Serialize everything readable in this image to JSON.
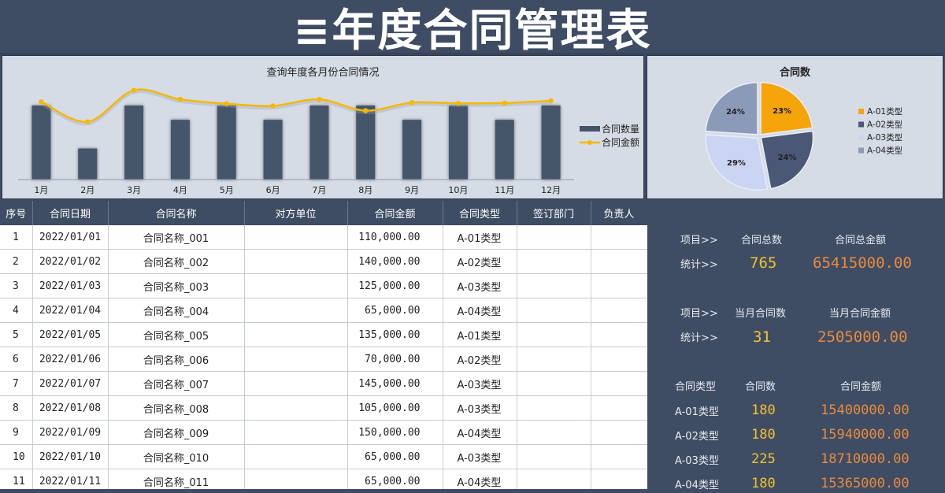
{
  "title": "≡年度合同管理表",
  "colors": {
    "bar": "#44546a",
    "line": "#f5b800",
    "pie": [
      "#f5a40a",
      "#4a5775",
      "#c9d5f2",
      "#8a9ab8"
    ]
  },
  "line_chart": {
    "title": "查询年度各月份合同情况",
    "legend": [
      "合同数量",
      "合同金额"
    ]
  },
  "pie_chart": {
    "title": "合同数",
    "legend": [
      "A-01类型",
      "A-02类型",
      "A-03类型",
      "A-04类型"
    ],
    "labels": [
      "23%",
      "24%",
      "29%",
      "24%"
    ]
  },
  "chart_data": [
    {
      "type": "bar",
      "title": "查询年度各月份合同情况",
      "categories": [
        "1月",
        "2月",
        "3月",
        "4月",
        "5月",
        "6月",
        "7月",
        "8月",
        "9月",
        "10月",
        "11月",
        "12月"
      ],
      "series": [
        {
          "name": "合同数量",
          "type": "bar",
          "values": [
            31,
            13,
            31,
            25,
            31,
            25,
            31,
            31,
            25,
            31,
            25,
            31
          ]
        },
        {
          "name": "合同金额",
          "type": "line",
          "values": [
            2505000,
            1950000,
            2820000,
            2570000,
            2450000,
            2390000,
            2570000,
            2260000,
            2480000,
            2460000,
            2470000,
            2530000
          ]
        }
      ]
    },
    {
      "type": "pie",
      "title": "合同数",
      "categories": [
        "A-01类型",
        "A-02类型",
        "A-03类型",
        "A-04类型"
      ],
      "values": [
        23,
        24,
        29,
        24
      ]
    }
  ],
  "table": {
    "headers": [
      "序号",
      "合同日期",
      "合同名称",
      "对方单位",
      "合同金额",
      "合同类型",
      "签订部门",
      "负责人"
    ],
    "rows": [
      [
        "1",
        "2022/01/01",
        "合同名称_001",
        "",
        "110,000.00",
        "A-01类型",
        "",
        ""
      ],
      [
        "2",
        "2022/01/02",
        "合同名称_002",
        "",
        "140,000.00",
        "A-02类型",
        "",
        ""
      ],
      [
        "3",
        "2022/01/03",
        "合同名称_003",
        "",
        "125,000.00",
        "A-03类型",
        "",
        ""
      ],
      [
        "4",
        "2022/01/04",
        "合同名称_004",
        "",
        "65,000.00",
        "A-04类型",
        "",
        ""
      ],
      [
        "5",
        "2022/01/05",
        "合同名称_005",
        "",
        "135,000.00",
        "A-01类型",
        "",
        ""
      ],
      [
        "6",
        "2022/01/06",
        "合同名称_006",
        "",
        "70,000.00",
        "A-02类型",
        "",
        ""
      ],
      [
        "7",
        "2022/01/07",
        "合同名称_007",
        "",
        "145,000.00",
        "A-03类型",
        "",
        ""
      ],
      [
        "8",
        "2022/01/08",
        "合同名称_008",
        "",
        "105,000.00",
        "A-03类型",
        "",
        ""
      ],
      [
        "9",
        "2022/01/09",
        "合同名称_009",
        "",
        "150,000.00",
        "A-04类型",
        "",
        ""
      ],
      [
        "10",
        "2022/01/10",
        "合同名称_010",
        "",
        "65,000.00",
        "A-03类型",
        "",
        ""
      ],
      [
        "11",
        "2022/01/11",
        "合同名称_011",
        "",
        "65,000.00",
        "A-04类型",
        "",
        ""
      ]
    ]
  },
  "stats": {
    "total": {
      "item_label": "项目>>",
      "count_label": "合同总数",
      "amount_label": "合同总金额",
      "stat_label": "统计>>",
      "count": "765",
      "amount": "65415000.00"
    },
    "month": {
      "item_label": "项目>>",
      "count_label": "当月合同数",
      "amount_label": "当月合同金额",
      "stat_label": "统计>>",
      "count": "31",
      "amount": "2505000.00"
    },
    "by_type": {
      "headers": [
        "合同类型",
        "合同数",
        "合同金额"
      ],
      "rows": [
        [
          "A-01类型",
          "180",
          "15400000.00"
        ],
        [
          "A-02类型",
          "180",
          "15940000.00"
        ],
        [
          "A-03类型",
          "225",
          "18710000.00"
        ],
        [
          "A-04类型",
          "180",
          "15365000.00"
        ]
      ]
    }
  }
}
